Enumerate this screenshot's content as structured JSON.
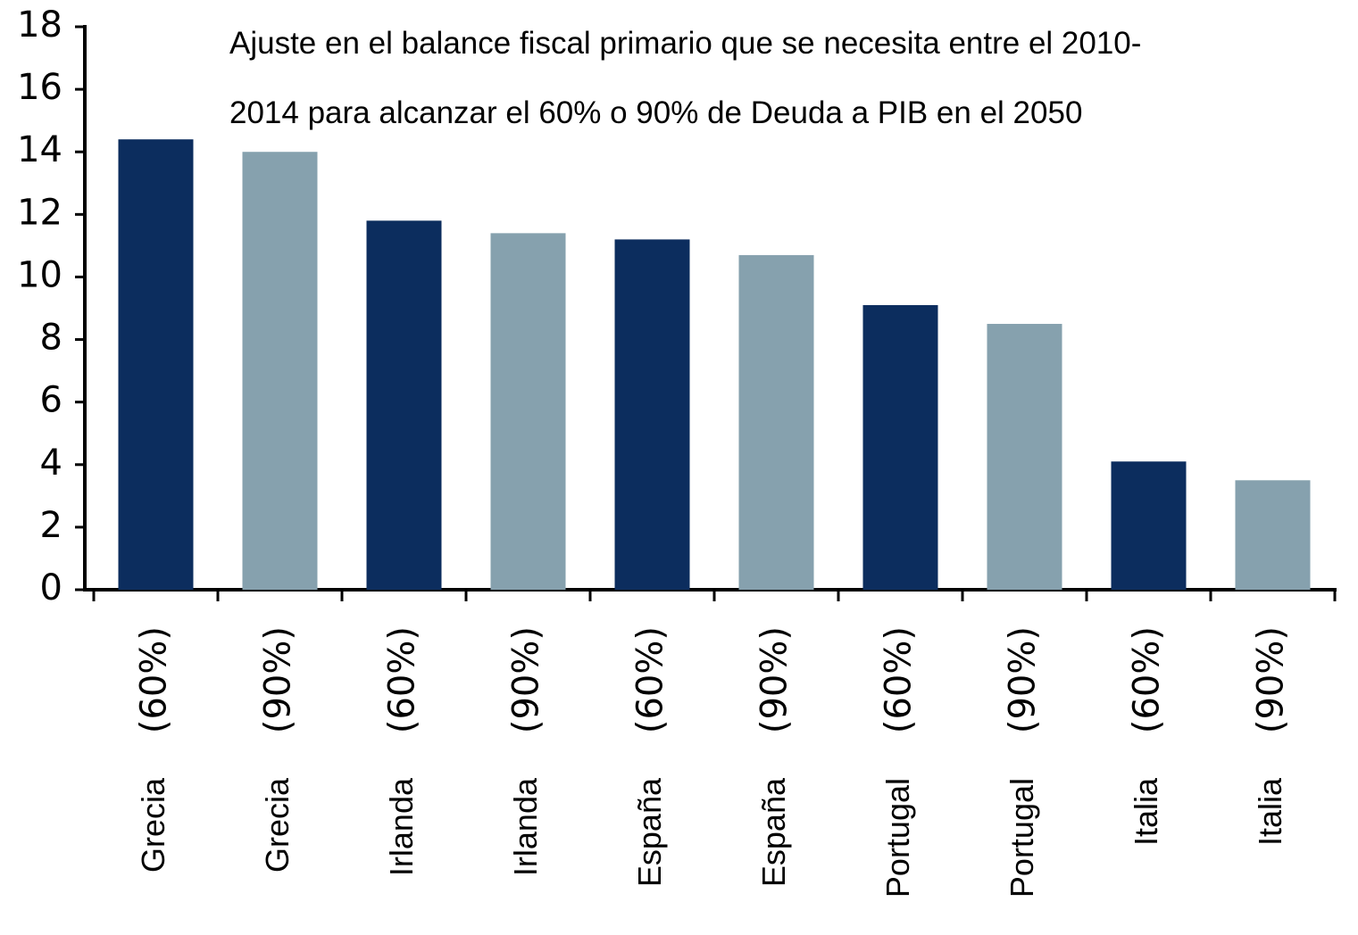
{
  "chart_data": {
    "type": "bar",
    "title": [
      "Ajuste en el balance fiscal primario que se necesita entre el 2010-",
      "2014 para alcanzar el 60% o 90% de Deuda a PIB en el 2050"
    ],
    "categories": [
      [
        "Grecia",
        "(60%)"
      ],
      [
        "Grecia",
        "(90%)"
      ],
      [
        "Irlanda",
        "(60%)"
      ],
      [
        "Irlanda",
        "(90%)"
      ],
      [
        "España",
        "(60%)"
      ],
      [
        "España",
        "(90%)"
      ],
      [
        "Portugal",
        "(60%)"
      ],
      [
        "Portugal",
        "(90%)"
      ],
      [
        "Italia",
        "(60%)"
      ],
      [
        "Italia",
        "(90%)"
      ]
    ],
    "values": [
      14.4,
      14.0,
      11.8,
      11.4,
      11.2,
      10.7,
      9.1,
      8.5,
      4.1,
      3.5
    ],
    "colors": [
      "#0c2d5e",
      "#86a1ae",
      "#0c2d5e",
      "#86a1ae",
      "#0c2d5e",
      "#86a1ae",
      "#0c2d5e",
      "#86a1ae",
      "#0c2d5e",
      "#86a1ae"
    ],
    "ylim": [
      0,
      18
    ],
    "yticks": [
      0,
      2,
      4,
      6,
      8,
      10,
      12,
      14,
      16,
      18
    ],
    "grid": false
  }
}
